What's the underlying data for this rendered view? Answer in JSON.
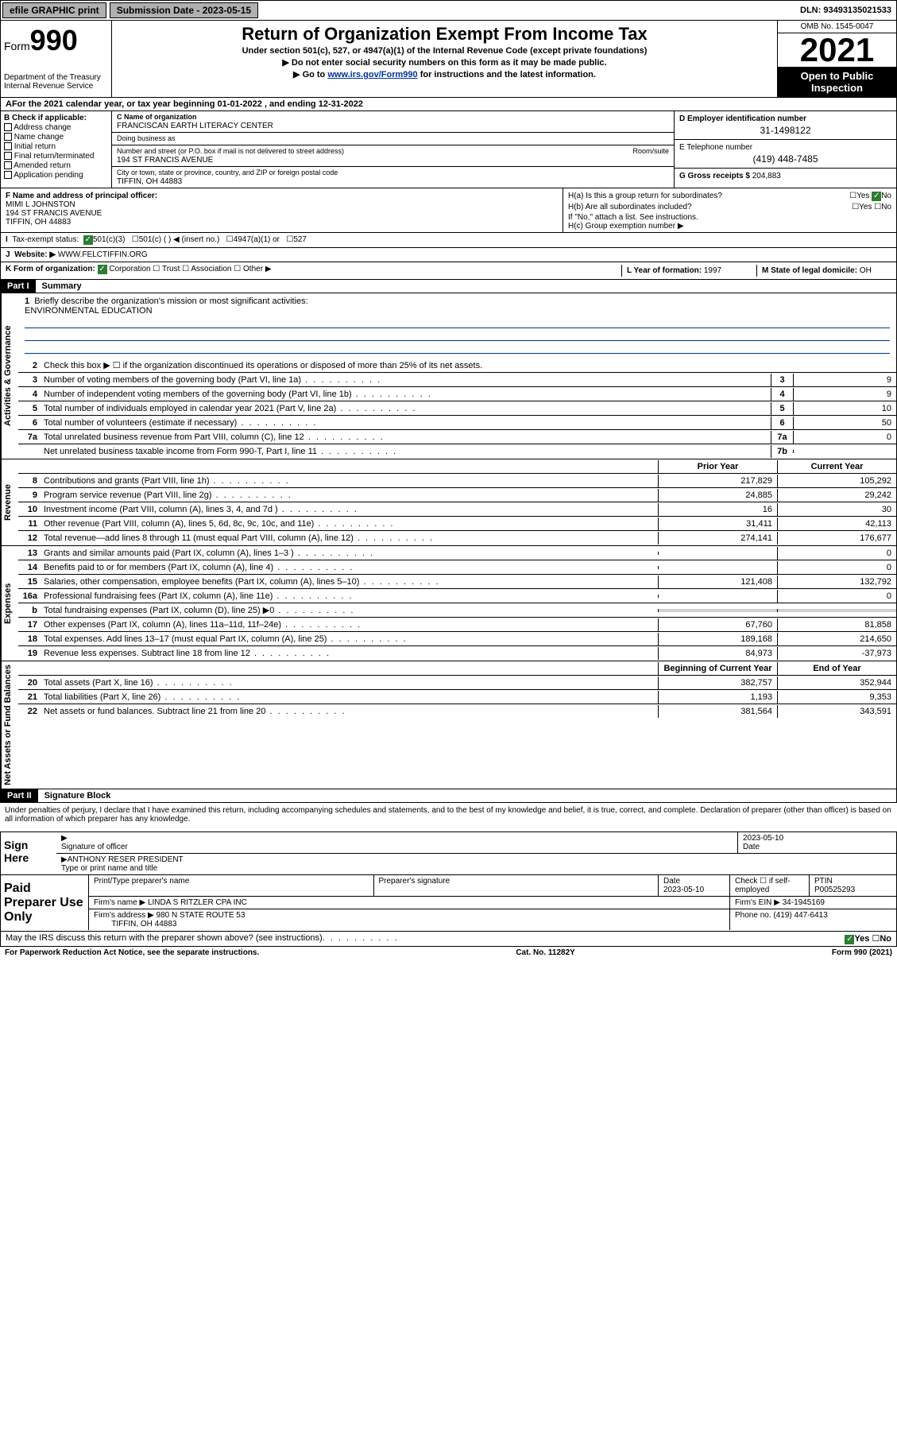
{
  "topbar": {
    "efile": "efile GRAPHIC print",
    "sub_label": "Submission Date - 2023-05-15",
    "dln": "DLN: 93493135021533"
  },
  "header": {
    "form_label": "Form",
    "form_num": "990",
    "dept": "Department of the Treasury\nInternal Revenue Service",
    "title": "Return of Organization Exempt From Income Tax",
    "subtitle": "Under section 501(c), 527, or 4947(a)(1) of the Internal Revenue Code (except private foundations)",
    "note1": "▶ Do not enter social security numbers on this form as it may be made public.",
    "note2_pre": "▶ Go to ",
    "note2_link": "www.irs.gov/Form990",
    "note2_post": " for instructions and the latest information.",
    "omb": "OMB No. 1545-0047",
    "year": "2021",
    "open": "Open to Public Inspection"
  },
  "line_a": "For the 2021 calendar year, or tax year beginning 01-01-2022   , and ending 12-31-2022",
  "box_b": {
    "title": "B Check if applicable:",
    "items": [
      "Address change",
      "Name change",
      "Initial return",
      "Final return/terminated",
      "Amended return",
      "Application pending"
    ]
  },
  "name_block": {
    "c_label": "C Name of organization",
    "c_name": "FRANCISCAN EARTH LITERACY CENTER",
    "dba_label": "Doing business as",
    "dba": "",
    "addr_label": "Number and street (or P.O. box if mail is not delivered to street address)",
    "room_label": "Room/suite",
    "addr": "194 ST FRANCIS AVENUE",
    "city_label": "City or town, state or province, country, and ZIP or foreign postal code",
    "city": "TIFFIN, OH  44883"
  },
  "right_block": {
    "d_label": "D Employer identification number",
    "d_val": "31-1498122",
    "e_label": "E Telephone number",
    "e_val": "(419) 448-7485",
    "g_label": "G Gross receipts $",
    "g_val": "204,883"
  },
  "officer": {
    "f_label": "F Name and address of principal officer:",
    "name": "MIMI L JOHNSTON",
    "addr1": "194 ST FRANCIS AVENUE",
    "addr2": "TIFFIN, OH  44883"
  },
  "h_block": {
    "ha": "H(a)  Is this a group return for subordinates?",
    "ha_ans": "No",
    "hb": "H(b)  Are all subordinates included?",
    "hb_note": "If \"No,\" attach a list. See instructions.",
    "hc": "H(c)  Group exemption number ▶"
  },
  "status": {
    "i_label": "Tax-exempt status:",
    "opt1": "501(c)(3)",
    "opt2": "501(c) (  ) ◀ (insert no.)",
    "opt3": "4947(a)(1) or",
    "opt4": "527"
  },
  "website": {
    "j_label": "Website: ▶",
    "val": "WWW.FELCTIFFIN.ORG"
  },
  "k_org": {
    "label": "K Form of organization:",
    "opts": [
      "Corporation",
      "Trust",
      "Association",
      "Other ▶"
    ],
    "l_label": "L Year of formation:",
    "l_val": "1997",
    "m_label": "M State of legal domicile:",
    "m_val": "OH"
  },
  "part1": {
    "header": "Part I",
    "title": "Summary",
    "line1_label": "Briefly describe the organization's mission or most significant activities:",
    "line1_val": "ENVIRONMENTAL EDUCATION",
    "line2": "Check this box ▶ ☐  if the organization discontinued its operations or disposed of more than 25% of its net assets.",
    "prior_hdr": "Prior Year",
    "curr_hdr": "Current Year",
    "begin_hdr": "Beginning of Current Year",
    "end_hdr": "End of Year"
  },
  "vtabs": {
    "gov": "Activities & Governance",
    "rev": "Revenue",
    "exp": "Expenses",
    "net": "Net Assets or Fund Balances"
  },
  "lines_gov": [
    {
      "n": "3",
      "t": "Number of voting members of the governing body (Part VI, line 1a)",
      "box": "3",
      "v": "9"
    },
    {
      "n": "4",
      "t": "Number of independent voting members of the governing body (Part VI, line 1b)",
      "box": "4",
      "v": "9"
    },
    {
      "n": "5",
      "t": "Total number of individuals employed in calendar year 2021 (Part V, line 2a)",
      "box": "5",
      "v": "10"
    },
    {
      "n": "6",
      "t": "Total number of volunteers (estimate if necessary)",
      "box": "6",
      "v": "50"
    },
    {
      "n": "7a",
      "t": "Total unrelated business revenue from Part VIII, column (C), line 12",
      "box": "7a",
      "v": "0"
    },
    {
      "n": "",
      "t": "Net unrelated business taxable income from Form 990-T, Part I, line 11",
      "box": "7b",
      "v": ""
    }
  ],
  "lines_rev": [
    {
      "n": "8",
      "t": "Contributions and grants (Part VIII, line 1h)",
      "p": "217,829",
      "c": "105,292"
    },
    {
      "n": "9",
      "t": "Program service revenue (Part VIII, line 2g)",
      "p": "24,885",
      "c": "29,242"
    },
    {
      "n": "10",
      "t": "Investment income (Part VIII, column (A), lines 3, 4, and 7d )",
      "p": "16",
      "c": "30"
    },
    {
      "n": "11",
      "t": "Other revenue (Part VIII, column (A), lines 5, 6d, 8c, 9c, 10c, and 11e)",
      "p": "31,411",
      "c": "42,113"
    },
    {
      "n": "12",
      "t": "Total revenue—add lines 8 through 11 (must equal Part VIII, column (A), line 12)",
      "p": "274,141",
      "c": "176,677"
    }
  ],
  "lines_exp": [
    {
      "n": "13",
      "t": "Grants and similar amounts paid (Part IX, column (A), lines 1–3 )",
      "p": "",
      "c": "0"
    },
    {
      "n": "14",
      "t": "Benefits paid to or for members (Part IX, column (A), line 4)",
      "p": "",
      "c": "0"
    },
    {
      "n": "15",
      "t": "Salaries, other compensation, employee benefits (Part IX, column (A), lines 5–10)",
      "p": "121,408",
      "c": "132,792"
    },
    {
      "n": "16a",
      "t": "Professional fundraising fees (Part IX, column (A), line 11e)",
      "p": "",
      "c": "0"
    },
    {
      "n": "b",
      "t": "Total fundraising expenses (Part IX, column (D), line 25) ▶0",
      "p": "shaded",
      "c": "shaded"
    },
    {
      "n": "17",
      "t": "Other expenses (Part IX, column (A), lines 11a–11d, 11f–24e)",
      "p": "67,760",
      "c": "81,858"
    },
    {
      "n": "18",
      "t": "Total expenses. Add lines 13–17 (must equal Part IX, column (A), line 25)",
      "p": "189,168",
      "c": "214,650"
    },
    {
      "n": "19",
      "t": "Revenue less expenses. Subtract line 18 from line 12",
      "p": "84,973",
      "c": "-37,973"
    }
  ],
  "lines_net": [
    {
      "n": "20",
      "t": "Total assets (Part X, line 16)",
      "p": "382,757",
      "c": "352,944"
    },
    {
      "n": "21",
      "t": "Total liabilities (Part X, line 26)",
      "p": "1,193",
      "c": "9,353"
    },
    {
      "n": "22",
      "t": "Net assets or fund balances. Subtract line 21 from line 20",
      "p": "381,564",
      "c": "343,591"
    }
  ],
  "part2": {
    "header": "Part II",
    "title": "Signature Block",
    "penalty": "Under penalties of perjury, I declare that I have examined this return, including accompanying schedules and statements, and to the best of my knowledge and belief, it is true, correct, and complete. Declaration of preparer (other than officer) is based on all information of which preparer has any knowledge."
  },
  "sign": {
    "label": "Sign Here",
    "sig_label": "Signature of officer",
    "date_label": "Date",
    "date": "2023-05-10",
    "name_label": "Type or print name and title",
    "name": "ANTHONY RESER  PRESIDENT"
  },
  "prep": {
    "label": "Paid Preparer Use Only",
    "h1": "Print/Type preparer's name",
    "h2": "Preparer's signature",
    "h3": "Date",
    "h4": "Check ☐ if self-employed",
    "h5": "PTIN",
    "date": "2023-05-10",
    "ptin": "P00525293",
    "firm_label": "Firm's name    ▶",
    "firm": "LINDA S RITZLER CPA INC",
    "ein_label": "Firm's EIN ▶",
    "ein": "34-1945169",
    "addr_label": "Firm's address ▶",
    "addr1": "980 N STATE ROUTE 53",
    "addr2": "TIFFIN, OH  44883",
    "phone_label": "Phone no.",
    "phone": "(419) 447-6413"
  },
  "discuss": {
    "q": "May the IRS discuss this return with the preparer shown above? (see instructions)",
    "yes": "Yes",
    "no": "No"
  },
  "footer": {
    "left": "For Paperwork Reduction Act Notice, see the separate instructions.",
    "mid": "Cat. No. 11282Y",
    "right": "Form 990 (2021)"
  }
}
